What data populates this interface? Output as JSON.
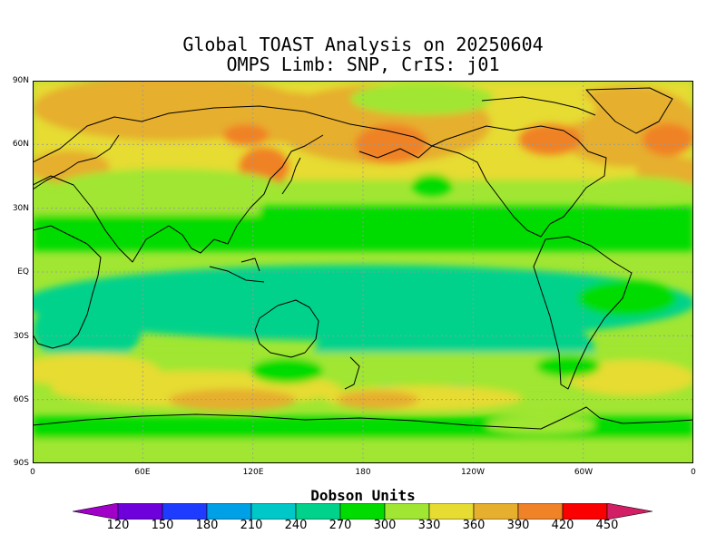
{
  "title_line1": "Global TOAST Analysis on 20250604",
  "title_line2": "OMPS Limb: SNP,  CrIS: j01",
  "map": {
    "lat_labels": [
      "90N",
      "60N",
      "30N",
      "EQ",
      "30S",
      "60S",
      "90S"
    ],
    "lon_labels": [
      "0",
      "60E",
      "120E",
      "180",
      "120W",
      "60W",
      "0"
    ]
  },
  "colorbar": {
    "title": "Dobson Units",
    "levels": [
      "120",
      "150",
      "180",
      "210",
      "240",
      "270",
      "300",
      "330",
      "360",
      "390",
      "420",
      "450"
    ],
    "colors": [
      "#a000c8",
      "#6e00dc",
      "#1e3cff",
      "#00a0e6",
      "#00c8c8",
      "#00d28c",
      "#00dc00",
      "#a0e632",
      "#e6dc32",
      "#e6af2d",
      "#f08228",
      "#fa0000",
      "#d21e64"
    ]
  }
}
